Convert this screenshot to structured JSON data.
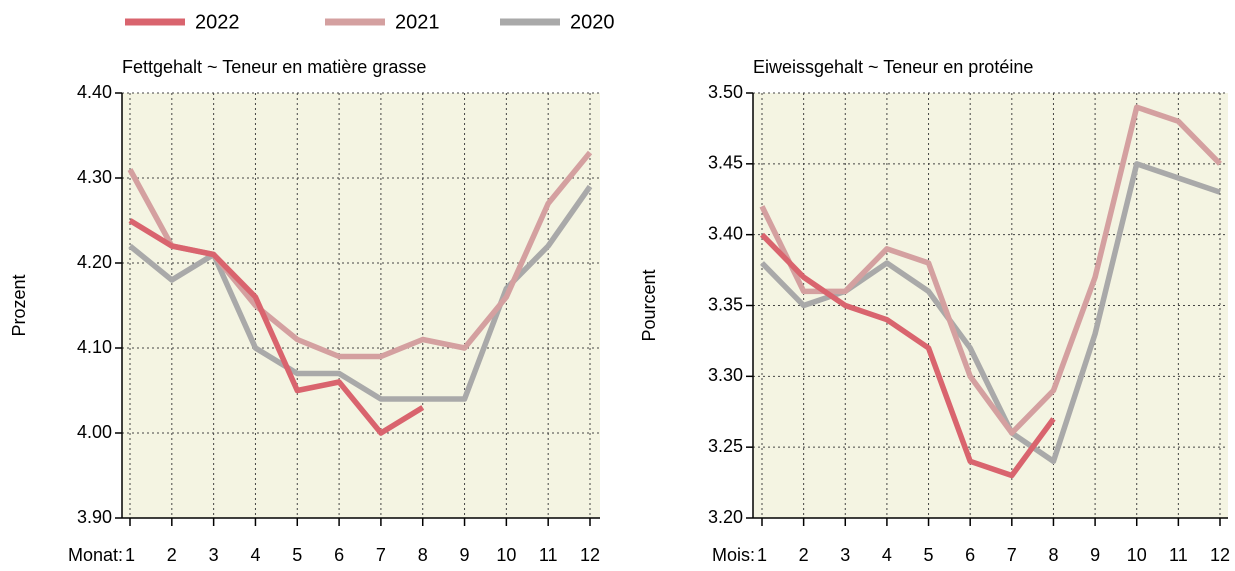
{
  "chart_data": [
    {
      "type": "line",
      "title": "Fettgehalt   ~   Teneur en matière grasse",
      "ylabel": "Prozent",
      "xlabel": "Monat:",
      "categories": [
        "1",
        "2",
        "3",
        "4",
        "5",
        "6",
        "7",
        "8",
        "9",
        "10",
        "11",
        "12"
      ],
      "ylim": [
        3.9,
        4.4
      ],
      "yticks": [
        {
          "value": 3.9,
          "label": "3.90"
        },
        {
          "value": 4.0,
          "label": "4.00"
        },
        {
          "value": 4.1,
          "label": "4.10"
        },
        {
          "value": 4.2,
          "label": "4.20"
        },
        {
          "value": 4.3,
          "label": "4.30"
        },
        {
          "value": 4.4,
          "label": "4.40"
        }
      ],
      "grid": true,
      "series": [
        {
          "name": "2022",
          "color": "#d9646e",
          "values": [
            4.25,
            4.22,
            4.21,
            4.16,
            4.05,
            4.06,
            4.0,
            4.03,
            null,
            null,
            null,
            null
          ]
        },
        {
          "name": "2021",
          "color": "#d4a0a0",
          "values": [
            4.31,
            4.22,
            4.21,
            4.15,
            4.11,
            4.09,
            4.09,
            4.11,
            4.1,
            4.16,
            4.27,
            4.33
          ]
        },
        {
          "name": "2020",
          "color": "#a9a9a9",
          "values": [
            4.22,
            4.18,
            4.21,
            4.1,
            4.07,
            4.07,
            4.04,
            4.04,
            4.04,
            4.17,
            4.22,
            4.29
          ]
        }
      ]
    },
    {
      "type": "line",
      "title": "Eiweissgehalt   ~   Teneur en protéine",
      "ylabel": "Pourcent",
      "xlabel": "Mois:",
      "categories": [
        "1",
        "2",
        "3",
        "4",
        "5",
        "6",
        "7",
        "8",
        "9",
        "10",
        "11",
        "12"
      ],
      "ylim": [
        3.2,
        3.5
      ],
      "yticks": [
        {
          "value": 3.2,
          "label": "3.20"
        },
        {
          "value": 3.25,
          "label": "3.25"
        },
        {
          "value": 3.3,
          "label": "3.30"
        },
        {
          "value": 3.35,
          "label": "3.35"
        },
        {
          "value": 3.4,
          "label": "3.40"
        },
        {
          "value": 3.45,
          "label": "3.45"
        },
        {
          "value": 3.5,
          "label": "3.50"
        }
      ],
      "grid": true,
      "series": [
        {
          "color": "#d9646e",
          "values": [
            3.4,
            3.37,
            3.35,
            3.34,
            3.32,
            3.24,
            3.23,
            3.27,
            null,
            null,
            null,
            null
          ]
        },
        {
          "color": "#d4a0a0",
          "values": [
            3.42,
            3.36,
            3.36,
            3.39,
            3.38,
            3.3,
            3.26,
            3.29,
            3.37,
            3.49,
            3.48,
            3.45
          ]
        },
        {
          "color": "#a9a9a9",
          "values": [
            3.38,
            3.35,
            3.36,
            3.38,
            3.36,
            3.32,
            3.26,
            3.24,
            3.33,
            3.45,
            3.44,
            3.43
          ]
        }
      ]
    }
  ]
}
